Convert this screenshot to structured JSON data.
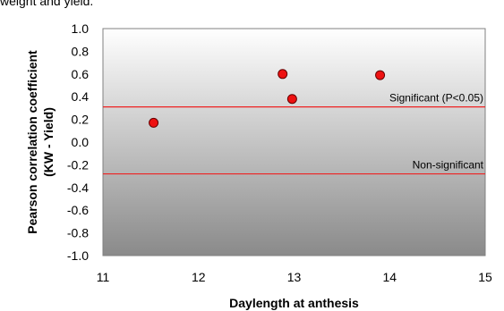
{
  "caption": "weight and yield.",
  "chart_data": {
    "type": "scatter",
    "title": "",
    "xlabel": "Daylength at anthesis",
    "ylabel_line1": "Pearson correlation coefficient",
    "ylabel_line2": "(KW - Yield)",
    "xlim": [
      11,
      15
    ],
    "ylim": [
      -1.0,
      1.0
    ],
    "x_ticks": [
      "11",
      "12",
      "13",
      "14",
      "15"
    ],
    "y_ticks": [
      "1.0",
      "0.8",
      "0.6",
      "0.4",
      "0.2",
      "0.0",
      "-0.2",
      "-0.4",
      "-0.6",
      "-0.8",
      "-1.0"
    ],
    "grid": false,
    "points": [
      {
        "x": 11.53,
        "y": 0.17
      },
      {
        "x": 12.88,
        "y": 0.6
      },
      {
        "x": 12.98,
        "y": 0.38
      },
      {
        "x": 13.9,
        "y": 0.59
      }
    ],
    "reference_lines": [
      {
        "y": 0.31,
        "label": "Significant (P<0.05)"
      },
      {
        "y": -0.28,
        "label": "Non-significant"
      }
    ],
    "colors": {
      "marker_fill": "#ee1111",
      "marker_stroke": "#660000",
      "reference_line": "#ee2222",
      "plot_top": "#ffffff",
      "plot_bottom": "#8a8a8a"
    }
  }
}
